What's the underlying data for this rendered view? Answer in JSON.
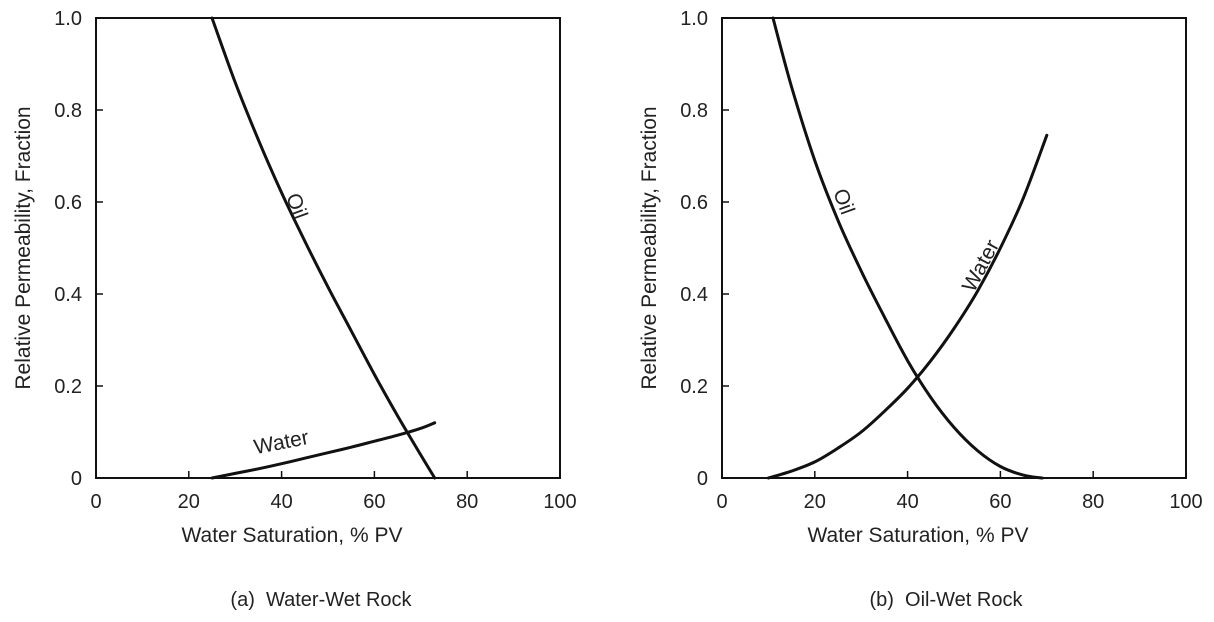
{
  "chart_data": [
    {
      "type": "line",
      "caption": "(a)  Water-Wet Rock",
      "xlabel": "Water Saturation, % PV",
      "ylabel": "Relative Permeability, Fraction",
      "xlim": [
        0,
        100
      ],
      "ylim": [
        0,
        1.0
      ],
      "x_ticks": [
        "0",
        "20",
        "40",
        "60",
        "80",
        "100"
      ],
      "y_ticks": [
        "0",
        "0.2",
        "0.4",
        "0.6",
        "0.8",
        "1.0"
      ],
      "grid": false,
      "legend": "none",
      "series": [
        {
          "name": "Oil",
          "x": [
            25,
            30,
            35,
            40,
            45,
            50,
            55,
            60,
            65,
            70,
            73
          ],
          "y": [
            1.0,
            0.86,
            0.735,
            0.62,
            0.515,
            0.415,
            0.32,
            0.225,
            0.135,
            0.05,
            0.0
          ]
        },
        {
          "name": "Water",
          "x": [
            25,
            30,
            35,
            40,
            45,
            50,
            55,
            60,
            65,
            70,
            73
          ],
          "y": [
            0.0,
            0.01,
            0.02,
            0.031,
            0.043,
            0.055,
            0.067,
            0.08,
            0.093,
            0.108,
            0.12
          ]
        }
      ],
      "annotations": [
        {
          "text": "Oil",
          "x": 43,
          "y": 0.59,
          "rotation": 70
        },
        {
          "text": "Water",
          "x": 40,
          "y": 0.075,
          "rotation": -11
        }
      ]
    },
    {
      "type": "line",
      "caption": "(b)  Oil-Wet Rock",
      "xlabel": "Water Saturation, % PV",
      "ylabel": "Relative Permeability, Fraction",
      "xlim": [
        0,
        100
      ],
      "ylim": [
        0,
        1.0
      ],
      "x_ticks": [
        "0",
        "20",
        "40",
        "60",
        "80",
        "100"
      ],
      "y_ticks": [
        "0",
        "0.2",
        "0.4",
        "0.6",
        "0.8",
        "1.0"
      ],
      "grid": false,
      "legend": "none",
      "series": [
        {
          "name": "Oil",
          "x": [
            11,
            15,
            20,
            25,
            30,
            35,
            40,
            45,
            50,
            55,
            60,
            65,
            69
          ],
          "y": [
            1.0,
            0.85,
            0.69,
            0.56,
            0.45,
            0.35,
            0.255,
            0.175,
            0.11,
            0.06,
            0.025,
            0.006,
            0.0
          ]
        },
        {
          "name": "Water",
          "x": [
            10,
            15,
            20,
            25,
            30,
            35,
            40,
            45,
            50,
            55,
            60,
            65,
            70
          ],
          "y": [
            0.0,
            0.015,
            0.035,
            0.065,
            0.1,
            0.145,
            0.195,
            0.255,
            0.325,
            0.405,
            0.5,
            0.61,
            0.745
          ]
        }
      ],
      "annotations": [
        {
          "text": "Oil",
          "x": 26,
          "y": 0.6,
          "rotation": 70
        },
        {
          "text": "Water",
          "x": 56,
          "y": 0.46,
          "rotation": -62
        }
      ]
    }
  ]
}
